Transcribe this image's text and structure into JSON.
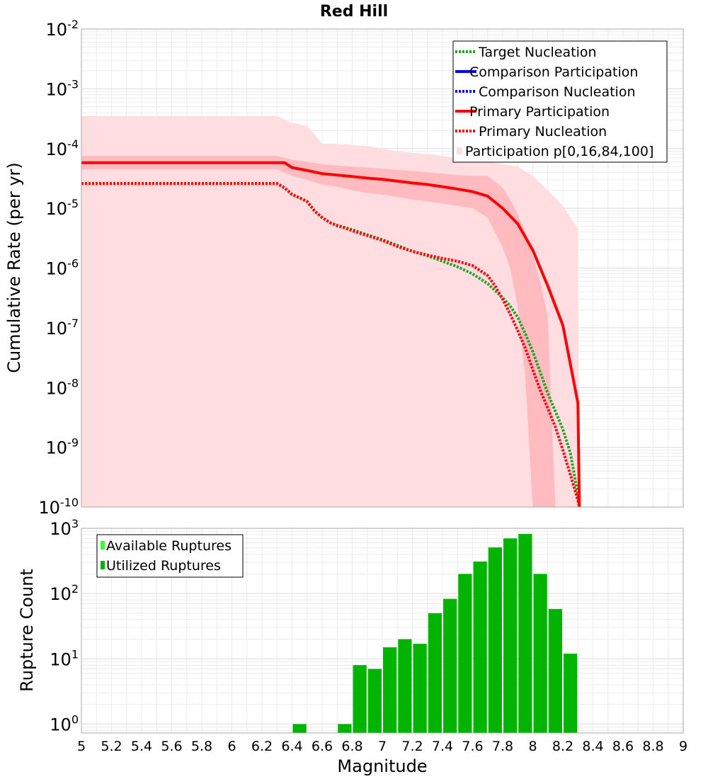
{
  "chart_data": [
    {
      "type": "line",
      "title": "Red Hill",
      "xlabel": "",
      "ylabel": "Cumulative Rate (per yr)",
      "xlim": [
        5,
        9
      ],
      "ylim": [
        1e-10,
        0.01
      ],
      "yscale": "log",
      "grid": true,
      "legend_position": "top-right",
      "y_tick_labels": [
        {
          "base": "10",
          "exp": "-10"
        },
        {
          "base": "10",
          "exp": "-9"
        },
        {
          "base": "10",
          "exp": "-8"
        },
        {
          "base": "10",
          "exp": "-7"
        },
        {
          "base": "10",
          "exp": "-6"
        },
        {
          "base": "10",
          "exp": "-5"
        },
        {
          "base": "10",
          "exp": "-4"
        },
        {
          "base": "10",
          "exp": "-3"
        },
        {
          "base": "10",
          "exp": "-2"
        }
      ],
      "legend": [
        {
          "label": "Target Nucleation",
          "color": "#1aa51a",
          "style": "dotted"
        },
        {
          "label": "Comparison Participation",
          "color": "#0000ff",
          "style": "solid"
        },
        {
          "label": "Comparison Nucleation",
          "color": "#0000ff",
          "style": "dotted"
        },
        {
          "label": "Primary Participation",
          "color": "#ff0000",
          "style": "solid"
        },
        {
          "label": "Primary Nucleation",
          "color": "#ff0000",
          "style": "dotted"
        },
        {
          "label": "Participation p[0,16,84,100]",
          "color": "#ffdde0",
          "style": "band"
        }
      ],
      "series": [
        {
          "name": "Target Nucleation",
          "color": "#1aa51a",
          "style": "dotted",
          "x": [
            5.0,
            5.5,
            6.0,
            6.3,
            6.35,
            6.4,
            6.45,
            6.5,
            6.55,
            6.6,
            6.65,
            6.7,
            6.75,
            6.8,
            6.9,
            7.0,
            7.1,
            7.2,
            7.3,
            7.4,
            7.5,
            7.6,
            7.7,
            7.8,
            7.85,
            7.9,
            7.95,
            8.0,
            8.05,
            8.1,
            8.15,
            8.2,
            8.25,
            8.3,
            8.31
          ],
          "y": [
            2.6e-05,
            2.6e-05,
            2.6e-05,
            2.6e-05,
            2.2e-05,
            1.7e-05,
            1.5e-05,
            1.3e-05,
            9e-06,
            7e-06,
            5.8e-06,
            5.2e-06,
            4.8e-06,
            4.4e-06,
            3.6e-06,
            3e-06,
            2.4e-06,
            1.9e-06,
            1.6e-06,
            1.3e-06,
            1.05e-06,
            8e-07,
            5.5e-07,
            3.2e-07,
            2.3e-07,
            1.5e-07,
            8e-08,
            4e-08,
            1.8e-08,
            8e-09,
            4e-09,
            2e-09,
            8e-10,
            1.6e-10,
            1e-10
          ]
        },
        {
          "name": "Primary Nucleation",
          "color": "#ff0000",
          "style": "dotted",
          "x": [
            5.0,
            5.5,
            6.0,
            6.3,
            6.35,
            6.4,
            6.45,
            6.5,
            6.55,
            6.6,
            6.65,
            6.7,
            6.75,
            6.8,
            6.9,
            7.0,
            7.1,
            7.2,
            7.3,
            7.4,
            7.5,
            7.6,
            7.7,
            7.75,
            7.8,
            7.85,
            7.9,
            7.95,
            8.0,
            8.05,
            8.1,
            8.15,
            8.2,
            8.25,
            8.3,
            8.31
          ],
          "y": [
            2.6e-05,
            2.6e-05,
            2.6e-05,
            2.6e-05,
            2.2e-05,
            1.7e-05,
            1.5e-05,
            1.3e-05,
            9e-06,
            7e-06,
            5.8e-06,
            5.1e-06,
            4.7e-06,
            4.2e-06,
            3.5e-06,
            2.9e-06,
            2.3e-06,
            1.9e-06,
            1.65e-06,
            1.45e-06,
            1.3e-06,
            1.1e-06,
            7.5e-07,
            5e-07,
            3e-07,
            1.7e-07,
            9e-08,
            4.6e-08,
            2e-08,
            9e-09,
            4.5e-09,
            2.2e-09,
            9e-10,
            3.5e-10,
            1.3e-10,
            1e-10
          ]
        },
        {
          "name": "Primary Participation",
          "color": "#ff0000",
          "style": "solid",
          "x": [
            5.0,
            5.5,
            6.0,
            6.3,
            6.35,
            6.4,
            6.5,
            6.6,
            6.7,
            6.8,
            6.9,
            7.0,
            7.1,
            7.2,
            7.3,
            7.4,
            7.5,
            7.6,
            7.7,
            7.8,
            7.9,
            8.0,
            8.1,
            8.2,
            8.3,
            8.31
          ],
          "y": [
            5.8e-05,
            5.8e-05,
            5.8e-05,
            5.8e-05,
            5.8e-05,
            4.8e-05,
            4.3e-05,
            3.8e-05,
            3.6e-05,
            3.4e-05,
            3.2e-05,
            3.05e-05,
            2.85e-05,
            2.65e-05,
            2.5e-05,
            2.3e-05,
            2.1e-05,
            1.9e-05,
            1.6e-05,
            1e-05,
            5.5e-06,
            2e-06,
            5e-07,
            1.1e-07,
            5.5e-09,
            1e-10
          ]
        }
      ],
      "bands": [
        {
          "name": "Participation p[0,100]",
          "color": "#ffdde0",
          "x": [
            5.0,
            6.3,
            6.4,
            6.5,
            6.6,
            6.7,
            6.8,
            6.9,
            7.0,
            7.1,
            7.2,
            7.3,
            7.4,
            7.5,
            7.6,
            7.7,
            7.8,
            7.9,
            8.0,
            8.1,
            8.2,
            8.3,
            8.31,
            8.32
          ],
          "upper": [
            0.00035,
            0.00035,
            0.00027,
            0.00024,
            0.00012,
            0.00012,
            0.000115,
            0.00011,
            0.0001,
            9e-05,
            8.5e-05,
            8e-05,
            7.5e-05,
            7e-05,
            6.5e-05,
            6e-05,
            5.5e-05,
            5e-05,
            3.5e-05,
            2e-05,
            1.1e-05,
            4.5e-06,
            1.5e-10,
            1e-10
          ],
          "lower": [
            1e-10,
            1e-10,
            1e-10,
            1e-10,
            1e-10,
            1e-10,
            1e-10,
            1e-10,
            1e-10,
            1e-10,
            1e-10,
            1e-10,
            1e-10,
            1e-10,
            1e-10,
            1e-10,
            1e-10,
            1e-10,
            1e-10,
            1e-10,
            1e-10,
            1e-10,
            1e-10,
            1e-10
          ]
        },
        {
          "name": "Participation p[16,84]",
          "color": "#ffbbc0",
          "x": [
            5.0,
            6.3,
            6.4,
            6.5,
            6.6,
            6.7,
            6.8,
            6.9,
            7.0,
            7.1,
            7.2,
            7.3,
            7.4,
            7.5,
            7.6,
            7.7,
            7.8,
            7.85,
            7.9,
            7.95,
            8.0,
            8.05,
            8.1,
            8.15
          ],
          "upper": [
            7.5e-05,
            7.5e-05,
            6.5e-05,
            6e-05,
            5.5e-05,
            5.2e-05,
            5e-05,
            4.8e-05,
            4.6e-05,
            4.4e-05,
            4.2e-05,
            4e-05,
            3.8e-05,
            3.6e-05,
            3.5e-05,
            3.5e-05,
            2.2e-05,
            1.4e-05,
            8e-06,
            4e-06,
            1.6e-06,
            6e-07,
            1.5e-07,
            1e-10
          ],
          "lower": [
            4.5e-05,
            4.5e-05,
            3.5e-05,
            3e-05,
            2.5e-05,
            2.3e-05,
            2e-05,
            1.8e-05,
            1.7e-05,
            1.55e-05,
            1.4e-05,
            1.3e-05,
            1.2e-05,
            1.1e-05,
            1e-05,
            7e-06,
            2.2e-06,
            1e-06,
            2.2e-07,
            1.5e-08,
            1e-10,
            1e-10,
            1e-10,
            1e-10
          ]
        }
      ]
    },
    {
      "type": "bar",
      "title": "",
      "xlabel": "Magnitude",
      "ylabel": "Rupture Count",
      "xlim": [
        5,
        9
      ],
      "ylim": [
        0.73,
        1000
      ],
      "yscale": "log",
      "grid": true,
      "legend_position": "top-left",
      "bar_width": 0.1,
      "x_tick_labels": [
        "5",
        "5.2",
        "5.4",
        "5.6",
        "5.8",
        "6",
        "6.2",
        "6.4",
        "6.6",
        "6.8",
        "7",
        "7.2",
        "7.4",
        "7.6",
        "7.8",
        "8",
        "8.2",
        "8.4",
        "8.6",
        "8.8",
        "9"
      ],
      "y_tick_labels": [
        {
          "base": "10",
          "exp": "0"
        },
        {
          "base": "10",
          "exp": "1"
        },
        {
          "base": "10",
          "exp": "2"
        },
        {
          "base": "10",
          "exp": "3"
        }
      ],
      "legend": [
        {
          "label": "Available Ruptures",
          "color": "#33ff33"
        },
        {
          "label": "Utilized Ruptures",
          "color": "#00b400"
        }
      ],
      "series": [
        {
          "name": "Utilized Ruptures",
          "color": "#00b400",
          "x": [
            6.45,
            6.75,
            6.85,
            6.95,
            7.05,
            7.15,
            7.25,
            7.35,
            7.45,
            7.55,
            7.65,
            7.75,
            7.85,
            7.95,
            8.05,
            8.15,
            8.25
          ],
          "values": [
            1,
            1,
            8,
            7,
            15,
            20,
            17,
            50,
            83,
            200,
            310,
            510,
            700,
            820,
            200,
            58,
            12
          ]
        }
      ]
    }
  ]
}
